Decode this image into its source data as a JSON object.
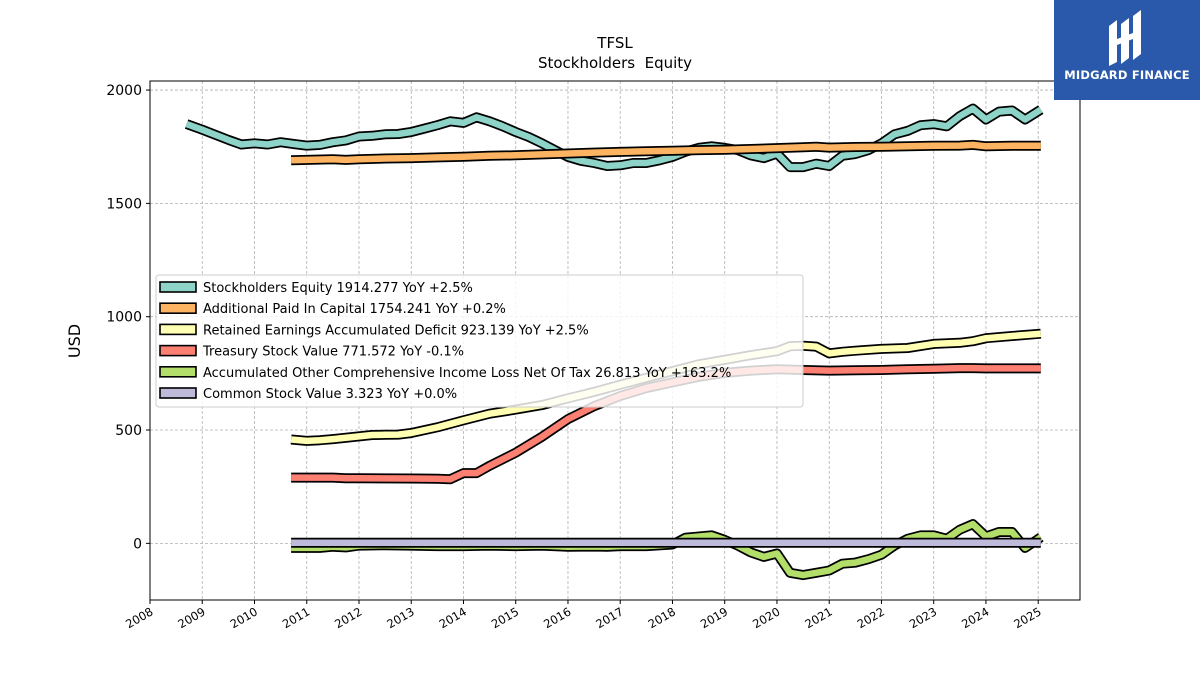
{
  "logo": {
    "text": "MIDGARD FINANCE"
  },
  "chart_data": {
    "type": "line",
    "title": "TFSL",
    "subtitle": "Stockholders  Equity",
    "xlabel": "",
    "ylabel": "USD",
    "xlim": [
      2008.0,
      2025.8
    ],
    "ylim": [
      -250,
      2040
    ],
    "x_ticks": [
      "2008",
      "2009",
      "2010",
      "2011",
      "2012",
      "2013",
      "2014",
      "2015",
      "2016",
      "2017",
      "2018",
      "2019",
      "2020",
      "2021",
      "2022",
      "2023",
      "2024",
      "2025"
    ],
    "y_ticks": [
      0,
      500,
      1000,
      1500,
      2000
    ],
    "grid": true,
    "legend_position": "center-left",
    "series": [
      {
        "name": "Stockholders Equity",
        "legend": "Stockholders Equity  1914.277 YoY +2.5%",
        "color": "#8dd3c7",
        "points": [
          [
            2008.7,
            1850
          ],
          [
            2009.0,
            1825
          ],
          [
            2009.5,
            1780
          ],
          [
            2009.75,
            1760
          ],
          [
            2010.0,
            1765
          ],
          [
            2010.25,
            1760
          ],
          [
            2010.5,
            1770
          ],
          [
            2010.75,
            1762
          ],
          [
            2011.0,
            1755
          ],
          [
            2011.25,
            1758
          ],
          [
            2011.5,
            1770
          ],
          [
            2011.75,
            1778
          ],
          [
            2012.0,
            1795
          ],
          [
            2012.25,
            1798
          ],
          [
            2012.5,
            1805
          ],
          [
            2012.75,
            1806
          ],
          [
            2013.0,
            1815
          ],
          [
            2013.25,
            1830
          ],
          [
            2013.5,
            1845
          ],
          [
            2013.75,
            1862
          ],
          [
            2014.0,
            1855
          ],
          [
            2014.25,
            1880
          ],
          [
            2014.5,
            1862
          ],
          [
            2014.75,
            1840
          ],
          [
            2015.0,
            1815
          ],
          [
            2015.25,
            1793
          ],
          [
            2015.5,
            1765
          ],
          [
            2015.75,
            1735
          ],
          [
            2016.0,
            1705
          ],
          [
            2016.25,
            1688
          ],
          [
            2016.5,
            1678
          ],
          [
            2016.75,
            1665
          ],
          [
            2017.0,
            1668
          ],
          [
            2017.25,
            1678
          ],
          [
            2017.5,
            1678
          ],
          [
            2017.75,
            1690
          ],
          [
            2018.0,
            1705
          ],
          [
            2018.25,
            1728
          ],
          [
            2018.5,
            1745
          ],
          [
            2018.75,
            1752
          ],
          [
            2019.0,
            1745
          ],
          [
            2019.25,
            1735
          ],
          [
            2019.5,
            1712
          ],
          [
            2019.75,
            1700
          ],
          [
            2020.0,
            1720
          ],
          [
            2020.25,
            1660
          ],
          [
            2020.5,
            1660
          ],
          [
            2020.75,
            1675
          ],
          [
            2021.0,
            1665
          ],
          [
            2021.25,
            1710
          ],
          [
            2021.5,
            1718
          ],
          [
            2021.75,
            1735
          ],
          [
            2022.0,
            1765
          ],
          [
            2022.25,
            1805
          ],
          [
            2022.5,
            1820
          ],
          [
            2022.75,
            1845
          ],
          [
            2023.0,
            1850
          ],
          [
            2023.25,
            1840
          ],
          [
            2023.5,
            1885
          ],
          [
            2023.75,
            1918
          ],
          [
            2024.0,
            1870
          ],
          [
            2024.25,
            1905
          ],
          [
            2024.5,
            1910
          ],
          [
            2024.75,
            1870
          ],
          [
            2025.05,
            1914
          ]
        ]
      },
      {
        "name": "Additional Paid In Capital",
        "legend": "Additional Paid In Capital  1754.241 YoY +0.2%",
        "color": "#fdb462",
        "points": [
          [
            2010.7,
            1690
          ],
          [
            2011.0,
            1692
          ],
          [
            2011.5,
            1695
          ],
          [
            2011.75,
            1692
          ],
          [
            2012.0,
            1695
          ],
          [
            2012.5,
            1698
          ],
          [
            2013.0,
            1700
          ],
          [
            2013.5,
            1703
          ],
          [
            2014.0,
            1706
          ],
          [
            2014.5,
            1710
          ],
          [
            2015.0,
            1712
          ],
          [
            2015.5,
            1716
          ],
          [
            2016.0,
            1720
          ],
          [
            2016.5,
            1724
          ],
          [
            2017.0,
            1727
          ],
          [
            2017.5,
            1730
          ],
          [
            2018.0,
            1732
          ],
          [
            2018.5,
            1735
          ],
          [
            2019.0,
            1737
          ],
          [
            2019.5,
            1740
          ],
          [
            2020.0,
            1744
          ],
          [
            2020.5,
            1748
          ],
          [
            2020.75,
            1750
          ],
          [
            2021.0,
            1746
          ],
          [
            2021.5,
            1749
          ],
          [
            2022.0,
            1750
          ],
          [
            2022.5,
            1752
          ],
          [
            2023.0,
            1754
          ],
          [
            2023.5,
            1755
          ],
          [
            2023.75,
            1758
          ],
          [
            2024.0,
            1752
          ],
          [
            2024.5,
            1754
          ],
          [
            2025.05,
            1754
          ]
        ]
      },
      {
        "name": "Retained Earnings Accumulated Deficit",
        "legend": "Retained Earnings Accumulated Deficit  923.139 YoY +2.5%",
        "color": "#ffffb3",
        "points": [
          [
            2010.7,
            458
          ],
          [
            2011.0,
            452
          ],
          [
            2011.25,
            455
          ],
          [
            2011.5,
            460
          ],
          [
            2012.0,
            472
          ],
          [
            2012.25,
            478
          ],
          [
            2012.5,
            479
          ],
          [
            2012.75,
            480
          ],
          [
            2013.0,
            487
          ],
          [
            2013.5,
            512
          ],
          [
            2014.0,
            543
          ],
          [
            2014.5,
            572
          ],
          [
            2015.0,
            590
          ],
          [
            2015.5,
            610
          ],
          [
            2016.0,
            640
          ],
          [
            2016.5,
            668
          ],
          [
            2017.0,
            700
          ],
          [
            2017.5,
            730
          ],
          [
            2018.0,
            760
          ],
          [
            2018.5,
            790
          ],
          [
            2019.0,
            810
          ],
          [
            2019.5,
            830
          ],
          [
            2020.0,
            848
          ],
          [
            2020.25,
            870
          ],
          [
            2020.5,
            872
          ],
          [
            2020.75,
            868
          ],
          [
            2021.0,
            838
          ],
          [
            2021.25,
            845
          ],
          [
            2021.5,
            850
          ],
          [
            2022.0,
            858
          ],
          [
            2022.5,
            862
          ],
          [
            2023.0,
            880
          ],
          [
            2023.5,
            885
          ],
          [
            2023.75,
            892
          ],
          [
            2024.0,
            905
          ],
          [
            2024.5,
            915
          ],
          [
            2025.05,
            925
          ]
        ]
      },
      {
        "name": "Treasury Stock Value",
        "legend": "Treasury Stock Value  771.572 YoY -0.1%",
        "color": "#fb8072",
        "points": [
          [
            2010.7,
            290
          ],
          [
            2011.5,
            290
          ],
          [
            2011.75,
            287
          ],
          [
            2012.0,
            287
          ],
          [
            2013.0,
            286
          ],
          [
            2013.5,
            285
          ],
          [
            2013.75,
            283
          ],
          [
            2014.0,
            310
          ],
          [
            2014.25,
            310
          ],
          [
            2014.5,
            342
          ],
          [
            2015.0,
            400
          ],
          [
            2015.5,
            470
          ],
          [
            2016.0,
            548
          ],
          [
            2016.5,
            605
          ],
          [
            2017.0,
            650
          ],
          [
            2017.5,
            685
          ],
          [
            2018.0,
            710
          ],
          [
            2018.5,
            735
          ],
          [
            2019.0,
            752
          ],
          [
            2019.5,
            762
          ],
          [
            2020.0,
            768
          ],
          [
            2020.5,
            765
          ],
          [
            2021.0,
            762
          ],
          [
            2021.5,
            764
          ],
          [
            2022.0,
            765
          ],
          [
            2022.5,
            768
          ],
          [
            2023.0,
            770
          ],
          [
            2023.5,
            773
          ],
          [
            2023.75,
            773
          ],
          [
            2024.0,
            772
          ],
          [
            2024.5,
            772
          ],
          [
            2025.05,
            772
          ]
        ]
      },
      {
        "name": "Accumulated Other Comprehensive Income Loss Net Of Tax",
        "legend": "Accumulated Other Comprehensive Income Loss Net Of Tax  26.813 YoY +163.2%",
        "color": "#b3de69",
        "points": [
          [
            2010.7,
            -20
          ],
          [
            2011.0,
            -20
          ],
          [
            2011.25,
            -20
          ],
          [
            2011.5,
            -15
          ],
          [
            2011.75,
            -18
          ],
          [
            2012.0,
            -10
          ],
          [
            2012.5,
            -8
          ],
          [
            2013.0,
            -10
          ],
          [
            2013.5,
            -12
          ],
          [
            2014.0,
            -12
          ],
          [
            2014.5,
            -10
          ],
          [
            2015.0,
            -12
          ],
          [
            2015.5,
            -10
          ],
          [
            2016.0,
            -15
          ],
          [
            2016.5,
            -14
          ],
          [
            2016.75,
            -15
          ],
          [
            2017.0,
            -12
          ],
          [
            2017.5,
            -12
          ],
          [
            2018.0,
            -5
          ],
          [
            2018.25,
            25
          ],
          [
            2018.75,
            35
          ],
          [
            2019.0,
            15
          ],
          [
            2019.25,
            -10
          ],
          [
            2019.5,
            -40
          ],
          [
            2019.75,
            -60
          ],
          [
            2020.0,
            -45
          ],
          [
            2020.25,
            -130
          ],
          [
            2020.5,
            -140
          ],
          [
            2020.75,
            -130
          ],
          [
            2021.0,
            -120
          ],
          [
            2021.25,
            -90
          ],
          [
            2021.5,
            -85
          ],
          [
            2021.75,
            -70
          ],
          [
            2022.0,
            -50
          ],
          [
            2022.25,
            -10
          ],
          [
            2022.5,
            20
          ],
          [
            2022.75,
            35
          ],
          [
            2023.0,
            35
          ],
          [
            2023.25,
            20
          ],
          [
            2023.5,
            60
          ],
          [
            2023.75,
            85
          ],
          [
            2024.0,
            30
          ],
          [
            2024.25,
            50
          ],
          [
            2024.5,
            50
          ],
          [
            2024.75,
            -20
          ],
          [
            2025.05,
            27
          ]
        ]
      },
      {
        "name": "Common Stock Value",
        "legend": "Common Stock Value  3.323 YoY +0.0%",
        "color": "#bebada",
        "points": [
          [
            2010.7,
            3
          ],
          [
            2025.05,
            3
          ]
        ]
      }
    ]
  }
}
